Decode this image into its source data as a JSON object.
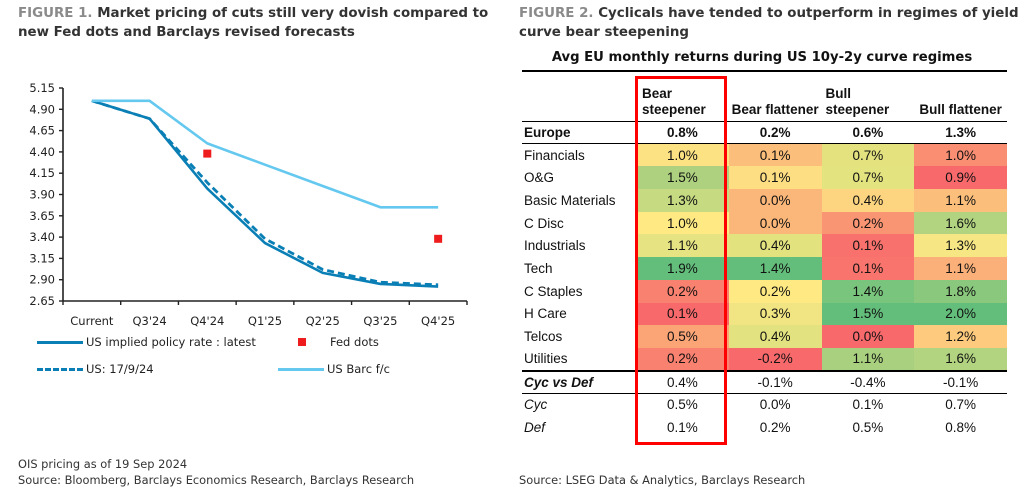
{
  "figure1": {
    "label": "FIGURE 1.",
    "title": "Market pricing of cuts still very dovish compared to new Fed dots and Barclays revised forecasts",
    "note": "OIS pricing as of 19 Sep 2024",
    "source": "Source: Bloomberg, Barclays Economics Research, Barclays Research"
  },
  "chart_data": {
    "type": "line",
    "title": "Market pricing of cuts still very dovish compared to new Fed dots and Barclays revised forecasts",
    "xlabel": "",
    "ylabel": "",
    "categories": [
      "Current",
      "Q3'24",
      "Q4'24",
      "Q1'25",
      "Q2'25",
      "Q3'25",
      "Q4'25"
    ],
    "ylim": [
      2.65,
      5.15
    ],
    "yticks": [
      "5.15",
      "4.90",
      "4.65",
      "4.40",
      "4.15",
      "3.90",
      "3.65",
      "3.40",
      "3.15",
      "2.90",
      "2.65"
    ],
    "ytick_values": [
      5.15,
      4.9,
      4.65,
      4.4,
      4.15,
      3.9,
      3.65,
      3.4,
      3.15,
      2.9,
      2.65
    ],
    "grid": false,
    "legend_position": "bottom",
    "series": [
      {
        "name": "US implied policy rate : latest",
        "style": "solid",
        "color": "#0a7fb5",
        "values": [
          5.0,
          4.79,
          3.97,
          3.33,
          2.98,
          2.85,
          2.82
        ]
      },
      {
        "name": "US: 17/9/24",
        "style": "dashed",
        "color": "#0a7fb5",
        "values": [
          5.0,
          4.79,
          4.04,
          3.38,
          3.02,
          2.87,
          2.84
        ]
      },
      {
        "name": "US Barc f/c",
        "style": "solid",
        "color": "#64c8ef",
        "values": [
          5.0,
          5.0,
          4.5,
          4.25,
          4.0,
          3.75,
          3.75
        ]
      },
      {
        "name": "Fed dots",
        "style": "marker-square",
        "color": "#ee1c1c",
        "values": [
          null,
          null,
          4.38,
          null,
          null,
          null,
          3.38
        ]
      }
    ],
    "legend": [
      {
        "name": "US implied policy rate : latest",
        "swatch": "solid"
      },
      {
        "name": "Fed dots",
        "swatch": "square"
      },
      {
        "name": "US: 17/9/24",
        "swatch": "dash"
      },
      {
        "name": "US Barc f/c",
        "swatch": "light"
      }
    ]
  },
  "figure2": {
    "label": "FIGURE 2.",
    "title": "Cyclicals have tended to outperform in regimes of yield curve bear steepening",
    "source": "Source: LSEG Data & Analytics, Barclays Research",
    "table": {
      "title": "Avg EU monthly returns during US 10y-2y curve regimes",
      "highlighted_column": "Bear steepener",
      "highlight_color": "#ff0000",
      "columns": [
        {
          "line1": "Bear",
          "line2": "steepener"
        },
        {
          "line1": "",
          "line2": "Bear flattener"
        },
        {
          "line1": "Bull",
          "line2": "steepener"
        },
        {
          "line1": "",
          "line2": "Bull flattener"
        }
      ],
      "europe": {
        "label": "Europe",
        "values": [
          "0.8%",
          "0.2%",
          "0.6%",
          "1.3%"
        ]
      },
      "sectors": [
        {
          "label": "Financials",
          "values": [
            "1.0%",
            "0.1%",
            "0.7%",
            "1.0%"
          ],
          "colors": [
            "#fde283",
            "#fcbf7b",
            "#e4e27f",
            "#f98e72"
          ]
        },
        {
          "label": "O&G",
          "values": [
            "1.5%",
            "0.1%",
            "0.7%",
            "0.9%"
          ],
          "colors": [
            "#add17f",
            "#fede82",
            "#e3e380",
            "#f8696b"
          ]
        },
        {
          "label": "Basic Materials",
          "values": [
            "1.3%",
            "0.0%",
            "0.4%",
            "1.1%"
          ],
          "colors": [
            "#c5da81",
            "#fbb77a",
            "#fdd580",
            "#fcbf7b"
          ]
        },
        {
          "label": "C Disc",
          "values": [
            "1.0%",
            "0.0%",
            "0.2%",
            "1.6%"
          ],
          "colors": [
            "#fee983",
            "#fbb779",
            "#fa9573",
            "#b2d37f"
          ]
        },
        {
          "label": "Industrials",
          "values": [
            "1.1%",
            "0.4%",
            "0.1%",
            "1.3%"
          ],
          "colors": [
            "#e5e382",
            "#e2e27f",
            "#f8716c",
            "#f7e784"
          ]
        },
        {
          "label": "Tech",
          "values": [
            "1.9%",
            "1.4%",
            "0.1%",
            "1.1%"
          ],
          "colors": [
            "#63be7b",
            "#64be7b",
            "#f8746d",
            "#fbb07a"
          ]
        },
        {
          "label": "C Staples",
          "values": [
            "0.2%",
            "0.2%",
            "1.4%",
            "1.8%"
          ],
          "colors": [
            "#f9816f",
            "#fee983",
            "#7ac57d",
            "#8ac97d"
          ]
        },
        {
          "label": "H Care",
          "values": [
            "0.1%",
            "0.3%",
            "1.5%",
            "2.0%"
          ],
          "colors": [
            "#f8696b",
            "#f1e583",
            "#63be7b",
            "#63be7b"
          ]
        },
        {
          "label": "Telcos",
          "values": [
            "0.5%",
            "0.4%",
            "0.0%",
            "1.2%"
          ],
          "colors": [
            "#fba577",
            "#e2e280",
            "#f8696b",
            "#fecb7e"
          ]
        },
        {
          "label": "Utilities",
          "values": [
            "0.2%",
            "-0.2%",
            "1.1%",
            "1.6%"
          ],
          "colors": [
            "#f9816f",
            "#f8696b",
            "#a8d07f",
            "#b2d37f"
          ]
        }
      ],
      "cyc_vs_def": {
        "label": "Cyc vs Def",
        "values": [
          "0.4%",
          "-0.1%",
          "-0.4%",
          "-0.1%"
        ]
      },
      "cyc": {
        "label": "Cyc",
        "values": [
          "0.5%",
          "0.0%",
          "0.1%",
          "0.7%"
        ]
      },
      "def": {
        "label": "Def",
        "values": [
          "0.1%",
          "0.2%",
          "0.5%",
          "0.8%"
        ]
      }
    }
  }
}
